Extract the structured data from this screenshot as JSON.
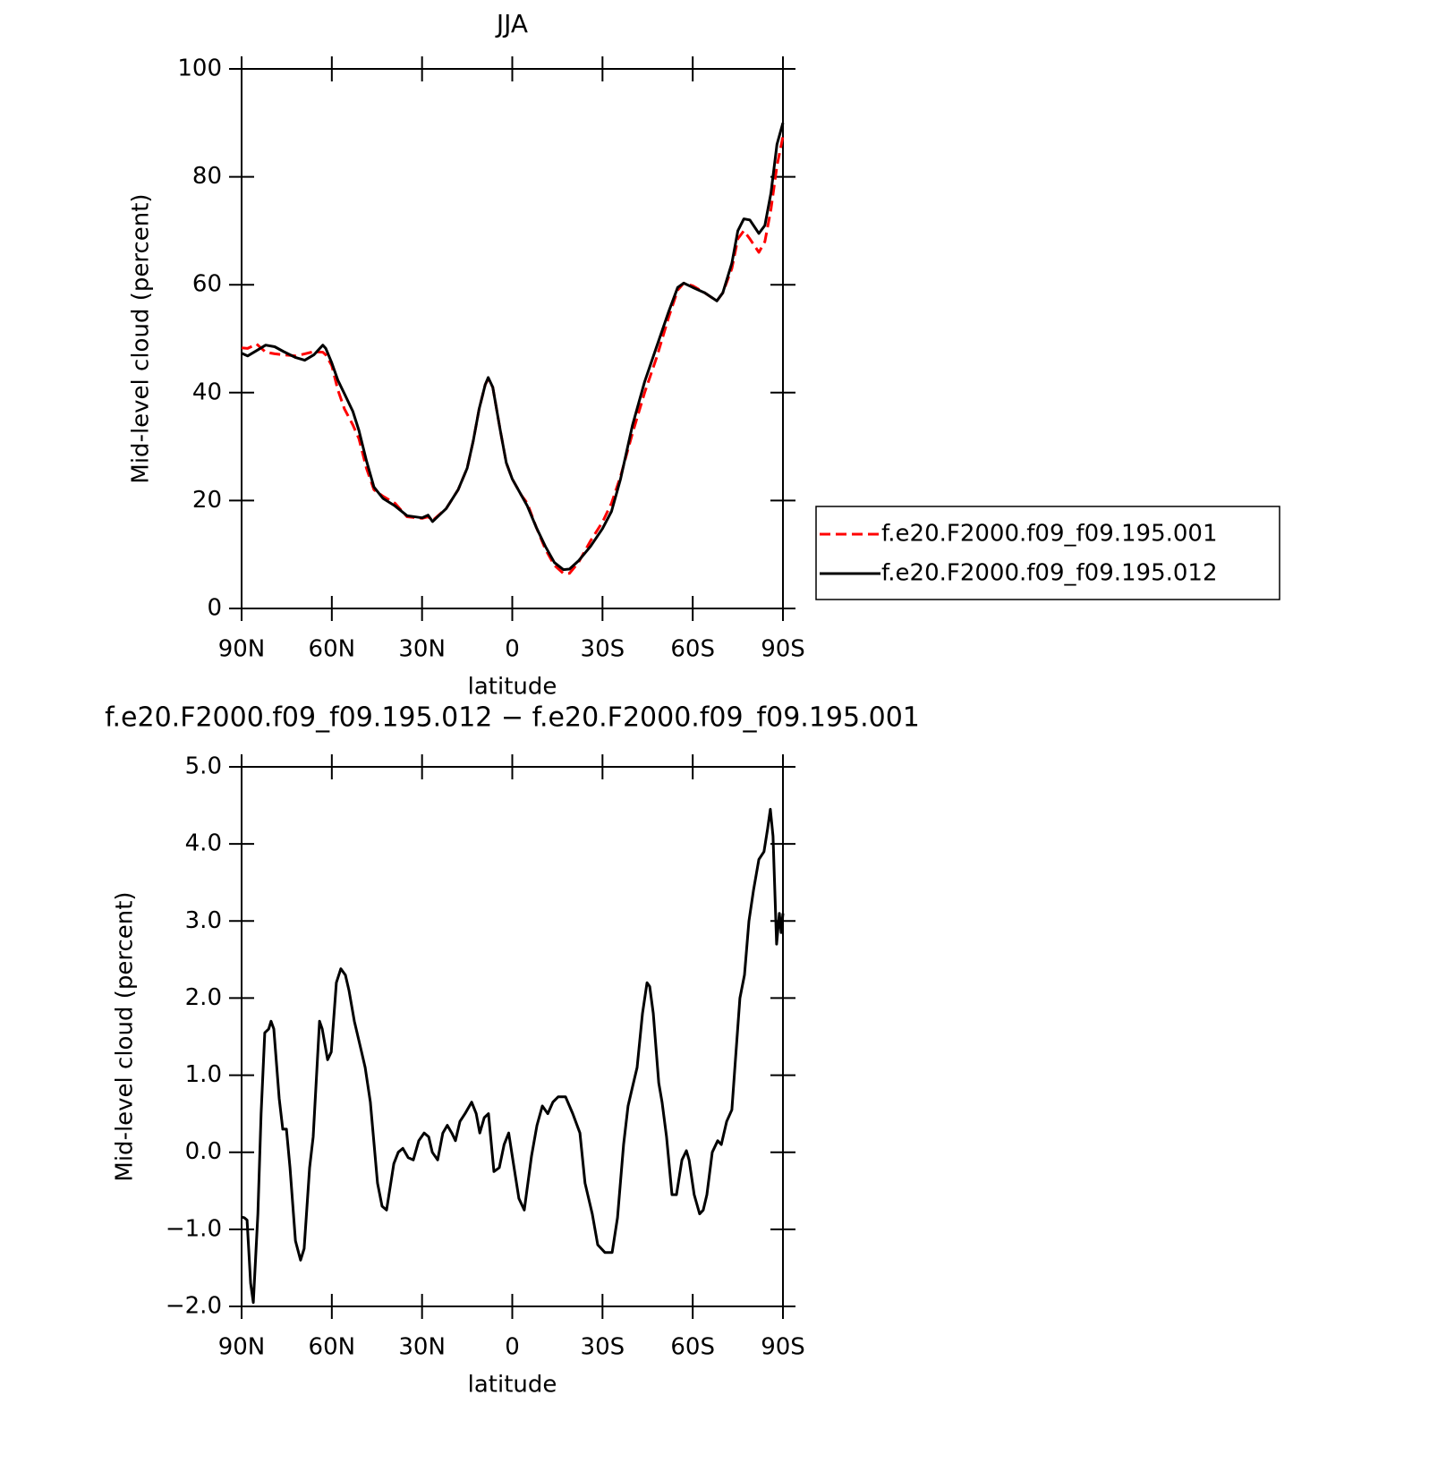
{
  "chart_data": [
    {
      "type": "line",
      "title": "JJA",
      "x_label": "latitude",
      "y_label": "Mid-level cloud (percent)",
      "xlim": [
        90,
        -90
      ],
      "xticks": [
        {
          "value": 90,
          "label": "90N"
        },
        {
          "value": 60,
          "label": "60N"
        },
        {
          "value": 30,
          "label": "30N"
        },
        0,
        {
          "value": -30,
          "label": "30S"
        },
        {
          "value": -60,
          "label": "60S"
        },
        {
          "value": -90,
          "label": "90S"
        }
      ],
      "ylim": [
        0,
        100
      ],
      "yticks": [
        0,
        20,
        40,
        60,
        80,
        100
      ],
      "legend": "right",
      "x": [
        90,
        88,
        85,
        82,
        79,
        76,
        72,
        69,
        66,
        63,
        62,
        60,
        58,
        55.8,
        53,
        51,
        48.5,
        46,
        43,
        39,
        35,
        30,
        28,
        26.5,
        22,
        18,
        15,
        13,
        11,
        9,
        8,
        6.5,
        4,
        2,
        0,
        -3,
        -5,
        -8,
        -11,
        -14,
        -17,
        -19,
        -22,
        -26,
        -30,
        -33,
        -36,
        -40,
        -44,
        -48,
        -52,
        -55,
        -57,
        -60,
        -64,
        -68,
        -70,
        -73,
        -75,
        -77,
        -79,
        -82,
        -84,
        -86,
        -88,
        -90
      ],
      "series": [
        {
          "name": "f.e20.F2000.f09_f09.195.001",
          "color": "#ff0000",
          "linestyle": "dashed",
          "values": [
            48.3,
            48.2,
            49,
            47.5,
            47.2,
            47,
            46.8,
            47.2,
            47.6,
            47.5,
            47,
            45,
            40.5,
            37,
            34,
            31.5,
            26,
            22,
            20.8,
            19.5,
            17,
            16.7,
            17,
            16.3,
            18.5,
            22,
            26,
            31,
            37,
            41.5,
            42.5,
            41,
            33,
            27,
            24,
            21,
            19.5,
            15,
            11,
            8,
            6.5,
            6.5,
            8.5,
            12.5,
            16,
            19.5,
            24.5,
            32.5,
            40,
            46.5,
            54,
            59,
            60.3,
            59.8,
            58.5,
            57,
            58.5,
            63,
            68.5,
            70,
            68.5,
            66,
            68,
            74,
            82,
            87.5
          ]
        },
        {
          "name": "f.e20.F2000.f09_f09.195.012",
          "color": "#000000",
          "linestyle": "solid",
          "values": [
            47.3,
            46.8,
            47.8,
            48.8,
            48.5,
            47.6,
            46.5,
            46,
            47,
            48.8,
            48.2,
            45.5,
            42.3,
            39.8,
            36.5,
            33,
            27.4,
            22.5,
            20.4,
            19,
            17.2,
            16.8,
            17.3,
            16.1,
            18.5,
            22,
            26,
            31,
            37,
            41.5,
            42.8,
            41,
            33,
            27,
            24,
            21,
            19,
            15,
            11.5,
            8.5,
            7.2,
            7.3,
            8.8,
            11.5,
            14.8,
            18,
            24,
            34,
            42,
            48.5,
            55,
            59.5,
            60.3,
            59.5,
            58.5,
            57,
            58.5,
            64,
            70,
            72.2,
            72,
            69.5,
            71,
            77,
            86,
            90
          ]
        }
      ]
    },
    {
      "type": "line",
      "title": "f.e20.F2000.f09_f09.195.012 − f.e20.F2000.f09_f09.195.001",
      "x_label": "latitude",
      "y_label": "Mid-level cloud (percent)",
      "xlim": [
        90,
        -90
      ],
      "xticks": [
        {
          "value": 90,
          "label": "90N"
        },
        {
          "value": 60,
          "label": "60N"
        },
        {
          "value": 30,
          "label": "30N"
        },
        0,
        {
          "value": -30,
          "label": "30S"
        },
        {
          "value": -60,
          "label": "60S"
        },
        {
          "value": -90,
          "label": "90S"
        }
      ],
      "ylim": [
        -2,
        5
      ],
      "yticks": [
        {
          "value": -2,
          "label": "−2.0"
        },
        {
          "value": -1,
          "label": "−1.0"
        },
        {
          "value": 0,
          "label": "0.0"
        },
        {
          "value": 1,
          "label": "1.0"
        },
        {
          "value": 2,
          "label": "2.0"
        },
        {
          "value": 3,
          "label": "3.0"
        },
        {
          "value": 4,
          "label": "4.0"
        },
        {
          "value": 5,
          "label": "5.0"
        }
      ],
      "x": [
        90,
        89.1,
        88.2,
        87,
        86.1,
        84.6,
        83.5,
        82.3,
        81,
        80.2,
        79.3,
        77.5,
        76.3,
        75.1,
        73.9,
        72.1,
        70.4,
        69.2,
        67.4,
        66.2,
        64.1,
        63.2,
        61.4,
        60.2,
        58.5,
        57,
        55.5,
        54.3,
        52.5,
        50.1,
        48.9,
        47.2,
        44.8,
        43.3,
        41.8,
        39.4,
        37.9,
        36.4,
        34.6,
        32.9,
        31.1,
        29.3,
        27.8,
        26.6,
        24.8,
        23.1,
        21.6,
        20.1,
        18.9,
        17.4,
        15.7,
        13.5,
        12,
        10.8,
        9.3,
        7.9,
        6.1,
        4.3,
        2.7,
        1.2,
        -0.6,
        -2.2,
        -4,
        -6.4,
        -8.2,
        -10,
        -11.8,
        -13.5,
        -15.3,
        -17.7,
        -20.1,
        -22.5,
        -24.2,
        -26.6,
        -28.4,
        -30.8,
        -33.2,
        -35,
        -37,
        -38.5,
        -40,
        -41.5,
        -43.3,
        -44.8,
        -45.7,
        -46.9,
        -48.7,
        -49.8,
        -51.3,
        -53.1,
        -54.6,
        -56.4,
        -57.9,
        -58.8,
        -60.5,
        -62.3,
        -63.5,
        -64.7,
        -66.5,
        -68.3,
        -69.5,
        -71.3,
        -73,
        -74.2,
        -75.7,
        -77.2,
        -78.7,
        -80.2,
        -82,
        -83.7,
        -84.9,
        -85.8,
        -86.7,
        -87.9,
        -88.8,
        -89.4,
        -90
      ],
      "series": [
        {
          "color": "#000000",
          "linestyle": "solid",
          "values": [
            -0.84,
            -0.85,
            -0.88,
            -1.7,
            -1.95,
            -0.8,
            0.5,
            1.55,
            1.6,
            1.7,
            1.6,
            0.7,
            0.3,
            0.3,
            -0.2,
            -1.15,
            -1.4,
            -1.25,
            -0.2,
            0.2,
            1.7,
            1.6,
            1.2,
            1.3,
            2.2,
            2.38,
            2.3,
            2.1,
            1.7,
            1.3,
            1.1,
            0.65,
            -0.4,
            -0.7,
            -0.75,
            -0.15,
            0,
            0.05,
            -0.07,
            -0.1,
            0.15,
            0.25,
            0.2,
            0,
            -0.1,
            0.25,
            0.35,
            0.25,
            0.15,
            0.4,
            0.5,
            0.65,
            0.5,
            0.25,
            0.45,
            0.5,
            -0.25,
            -0.2,
            0.1,
            0.25,
            -0.2,
            -0.6,
            -0.75,
            -0.05,
            0.35,
            0.6,
            0.5,
            0.65,
            0.72,
            0.72,
            0.5,
            0.25,
            -0.4,
            -0.8,
            -1.2,
            -1.3,
            -1.3,
            -0.85,
            0.1,
            0.6,
            0.85,
            1.1,
            1.8,
            2.2,
            2.15,
            1.8,
            0.9,
            0.65,
            0.2,
            -0.55,
            -0.55,
            -0.1,
            0.02,
            -0.1,
            -0.55,
            -0.8,
            -0.75,
            -0.55,
            0,
            0.15,
            0.1,
            0.4,
            0.55,
            1.2,
            2,
            2.3,
            3,
            3.4,
            3.8,
            3.9,
            4.2,
            4.45,
            4.1,
            2.7,
            3.1,
            2.85,
            3.1
          ]
        }
      ]
    }
  ]
}
